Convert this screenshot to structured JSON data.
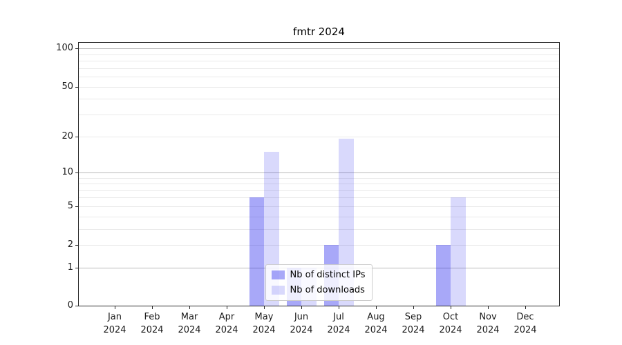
{
  "chart_data": {
    "type": "bar",
    "title": "fmtr 2024",
    "x_categories": [
      "Jan",
      "Feb",
      "Mar",
      "Apr",
      "May",
      "Jun",
      "Jul",
      "Aug",
      "Sep",
      "Oct",
      "Nov",
      "Dec"
    ],
    "x_year": "2024",
    "series": [
      {
        "name": "Nb of distinct IPs",
        "color": "rgba(20,20,235,0.37)",
        "values": [
          0,
          0,
          0,
          0,
          6,
          1,
          2,
          0,
          0,
          2,
          0,
          0
        ]
      },
      {
        "name": "Nb of downloads",
        "color": "rgba(20,20,235,0.16)",
        "values": [
          0,
          0,
          0,
          0,
          15,
          1,
          19,
          0,
          0,
          6,
          0,
          0
        ]
      }
    ],
    "y_ticks": [
      0,
      1,
      2,
      5,
      10,
      20,
      50,
      100
    ],
    "y_major_gridlines": [
      1,
      10,
      100
    ],
    "y_minor_gridlines": [
      2,
      3,
      4,
      5,
      6,
      7,
      8,
      9,
      20,
      30,
      40,
      50,
      60,
      70,
      80,
      90
    ],
    "y_scale": "log10(1+x)",
    "ylim": [
      0,
      113
    ],
    "grid": "horizontal only",
    "legend_position": "lower center"
  },
  "colors": {
    "grid_major": "#b8b8b8",
    "grid_minor": "#e9e9e9",
    "spine": "#262626",
    "text": "#1a1a1a",
    "legend_border": "#cccccc",
    "legend_bg": "rgba(255,255,255,0.8)"
  }
}
